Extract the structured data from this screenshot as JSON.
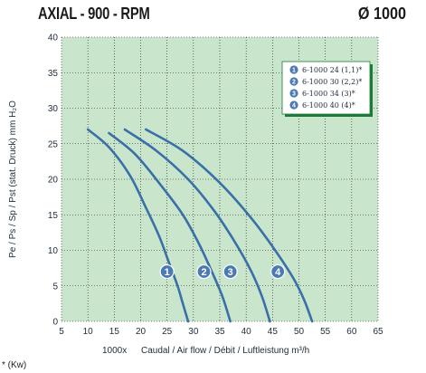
{
  "header": {
    "title": "AXIAL - 900 - RPM",
    "size": "Ø 1000"
  },
  "footnote": "* (Kw)",
  "colors": {
    "plot_bg": "#c9e6cc",
    "grid": "#1a1a1a",
    "curve": "#3a6fa8",
    "badge": "#4b7ab3",
    "legend_border": "#1f7a3a",
    "legend_bg": "#ffffff"
  },
  "chart_data": {
    "type": "line",
    "title": "",
    "xlabel": "Caudal / Air flow / Débit / Luftleistung m³/h",
    "xlabel_prefix": "1000x",
    "ylabel": "Pe / Ps / Sp / Pst (stat. Druck) mm H₂O",
    "xlim": [
      5,
      65
    ],
    "ylim": [
      0,
      40
    ],
    "x_ticks": [
      5,
      10,
      15,
      20,
      25,
      30,
      35,
      40,
      45,
      50,
      55,
      60,
      65
    ],
    "y_ticks": [
      0,
      5,
      10,
      15,
      20,
      25,
      30,
      35,
      40
    ],
    "grid": true,
    "legend_position": "top-right",
    "series": [
      {
        "name": "6-1000 24 (1,1)*",
        "marker": "1",
        "x": [
          10,
          14,
          18,
          21,
          23.5,
          25.5,
          27,
          28,
          29
        ],
        "y": [
          27,
          24.5,
          20.5,
          16,
          12,
          8,
          5,
          2.5,
          0
        ],
        "marker_pos": [
          25,
          7
        ]
      },
      {
        "name": "6-1000 30 (2,2)*",
        "marker": "2",
        "x": [
          14,
          19,
          24,
          28,
          31,
          33.5,
          35.5,
          37
        ],
        "y": [
          26.5,
          23.5,
          19,
          15,
          11,
          7,
          3.5,
          0
        ],
        "marker_pos": [
          32,
          7
        ]
      },
      {
        "name": "6-1000 34 (3)*",
        "marker": "3",
        "x": [
          17,
          23,
          29,
          34,
          38,
          41,
          43,
          44.5
        ],
        "y": [
          27,
          24,
          20,
          15.5,
          11,
          7,
          3.5,
          0
        ],
        "marker_pos": [
          37,
          7
        ]
      },
      {
        "name": "6-1000 40 (4)*",
        "marker": "4",
        "x": [
          21,
          28,
          35,
          41,
          45.5,
          49,
          51,
          52.5
        ],
        "y": [
          27,
          24,
          19.5,
          14.5,
          10,
          6,
          3,
          0
        ],
        "marker_pos": [
          46,
          7
        ]
      }
    ]
  }
}
